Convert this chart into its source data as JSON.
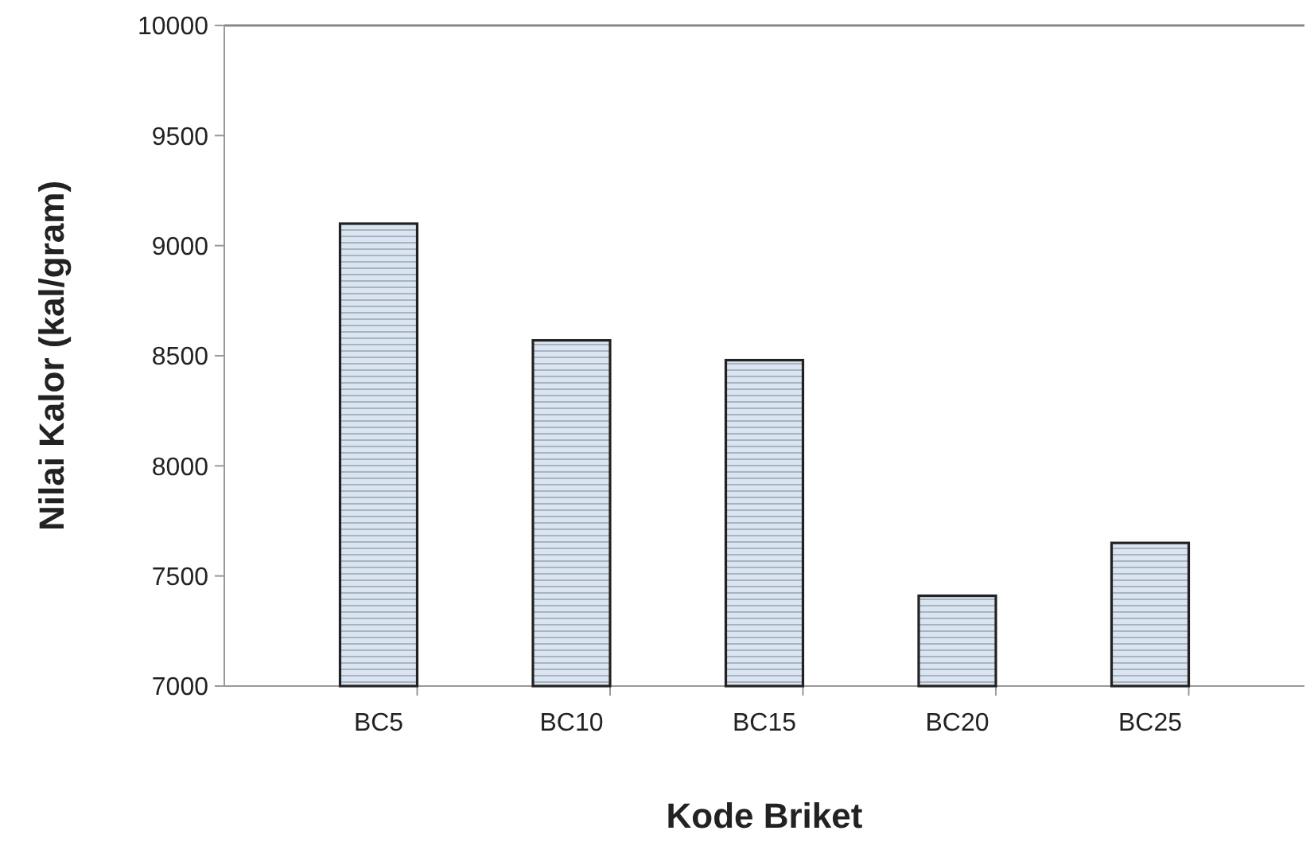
{
  "chart_data": {
    "type": "bar",
    "xlabel": "Kode Briket",
    "ylabel": "Nilai Kalor (kal/gram)",
    "categories": [
      "BC5",
      "BC10",
      "BC15",
      "BC20",
      "BC25"
    ],
    "values": [
      9100,
      8570,
      8480,
      7410,
      7650
    ],
    "color": "#dbe5f1",
    "ylim": [
      7000,
      10000
    ],
    "yticks": [
      7000,
      7500,
      8000,
      8500,
      9000,
      9500,
      10000
    ],
    "grid": false
  }
}
